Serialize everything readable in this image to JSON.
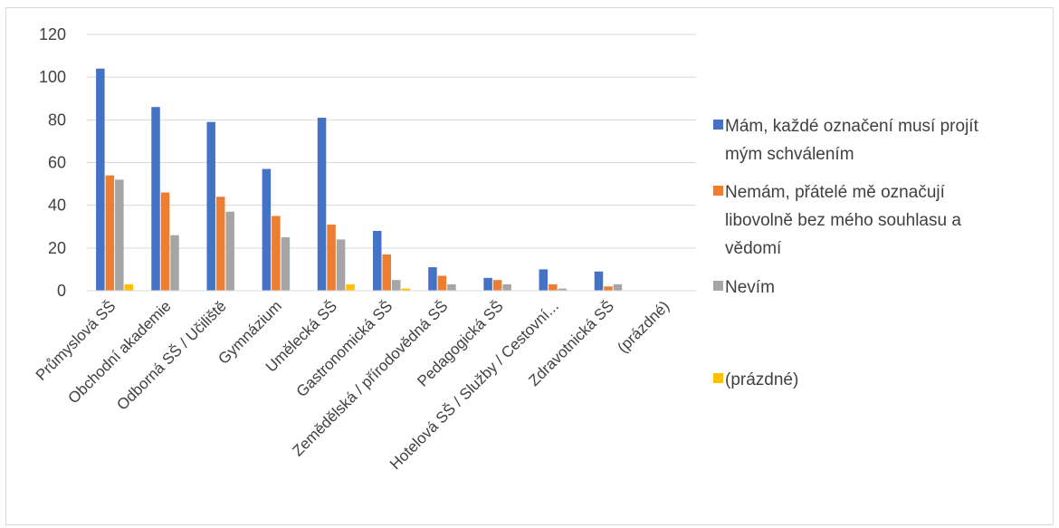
{
  "chart_data": {
    "type": "bar",
    "categories": [
      "Průmyslová SŠ",
      "Obchodní akademie",
      "Odborná SŠ / Učiliště",
      "Gymnázium",
      "Umělecká SŠ",
      "Gastronomická SŠ",
      "Zemědělská / přírodovědná SŠ",
      "Pedagogická SŠ",
      "Hotelová SŠ / Služby / Cestovní...",
      "Zdravotnická SŠ",
      "(prázdné)"
    ],
    "series": [
      {
        "name": "Mám, každé označení musí projít mým schválením",
        "legend_lines": [
          "Mám, každé označení musí projít",
          "mým schválením"
        ],
        "color": "#4472c4",
        "values": [
          104,
          86,
          79,
          57,
          81,
          28,
          11,
          6,
          10,
          9,
          0
        ]
      },
      {
        "name": "Nemám, přátelé mě označují libovolně bez mého souhlasu a vědomí",
        "legend_lines": [
          "Nemám, přátelé mě označují",
          "libovolně bez mého souhlasu a",
          "vědomí"
        ],
        "color": "#ed7d31",
        "values": [
          54,
          46,
          44,
          35,
          31,
          17,
          7,
          5,
          3,
          2,
          0
        ]
      },
      {
        "name": "Nevím",
        "legend_lines": [
          "Nevím"
        ],
        "color": "#a5a5a5",
        "values": [
          52,
          26,
          37,
          25,
          24,
          5,
          3,
          3,
          1,
          3,
          0
        ]
      },
      {
        "name": "(prázdné)",
        "legend_lines": [
          "(prázdné)"
        ],
        "color": "#ffc000",
        "values": [
          3,
          0,
          0,
          0,
          3,
          1,
          0,
          0,
          0,
          0,
          0
        ]
      }
    ],
    "ylim": [
      0,
      120
    ],
    "yticks": [
      0,
      20,
      40,
      60,
      80,
      100,
      120
    ],
    "grid": true,
    "legend_position": "right"
  }
}
